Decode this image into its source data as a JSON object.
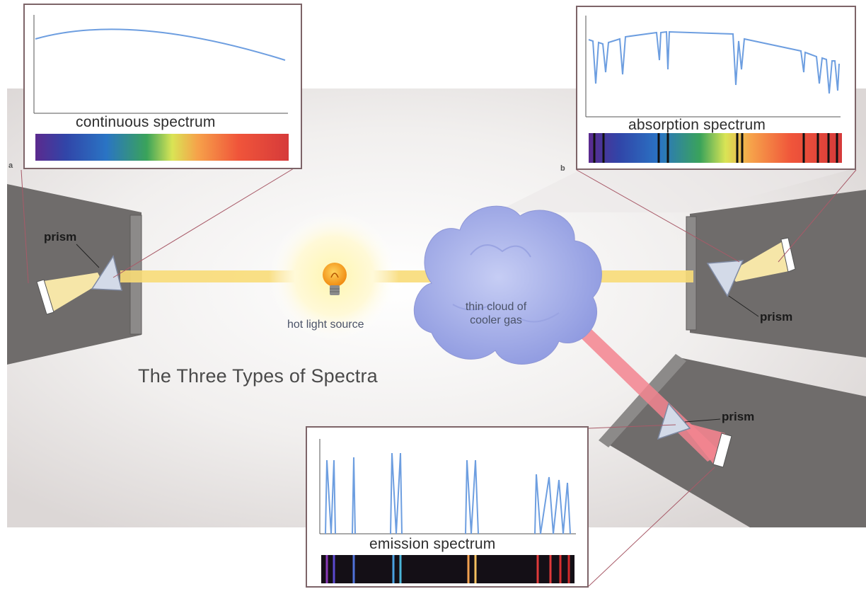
{
  "title": "The Three Types of Spectra",
  "corner_labels": {
    "a": "a",
    "b": "b"
  },
  "labels": {
    "prism_left": "prism",
    "prism_right": "prism",
    "prism_bottom": "prism",
    "light_source": "hot light source",
    "cloud_line1": "thin cloud of",
    "cloud_line2": "cooler gas"
  },
  "panels": {
    "continuous": {
      "caption": "continuous spectrum"
    },
    "absorption": {
      "caption": "absorption spectrum"
    },
    "emission": {
      "caption": "emission spectrum"
    }
  },
  "colors": {
    "plot_line": "#6d9ee0",
    "beam": "#f8dc78",
    "emission_beam": "#f3848f",
    "cloud": "#a8b2ea",
    "panel_border": "#7d6468"
  }
}
